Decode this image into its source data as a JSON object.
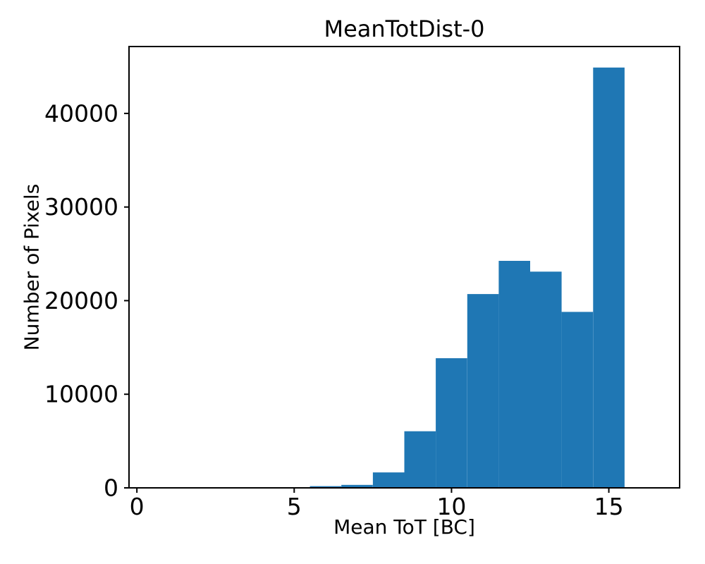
{
  "chart_data": {
    "type": "bar",
    "title": "MeanTotDist-0",
    "xlabel": "Mean ToT [BC]",
    "ylabel": "Number of Pixels",
    "bar_color": "#1f77b4",
    "axis_color": "#000000",
    "background_color": "#ffffff",
    "bin_centers": [
      6,
      7,
      8,
      9,
      10,
      11,
      12,
      13,
      14,
      15
    ],
    "bin_width": 1,
    "values": [
      180,
      320,
      1650,
      6050,
      13850,
      20700,
      24250,
      23100,
      18800,
      44900
    ],
    "x_ticks": [
      0,
      5,
      10,
      15
    ],
    "y_ticks": [
      0,
      10000,
      20000,
      30000,
      40000
    ],
    "xlim": [
      -0.25,
      17.25
    ],
    "ylim": [
      0,
      47145
    ],
    "grid": false,
    "legend": null
  }
}
